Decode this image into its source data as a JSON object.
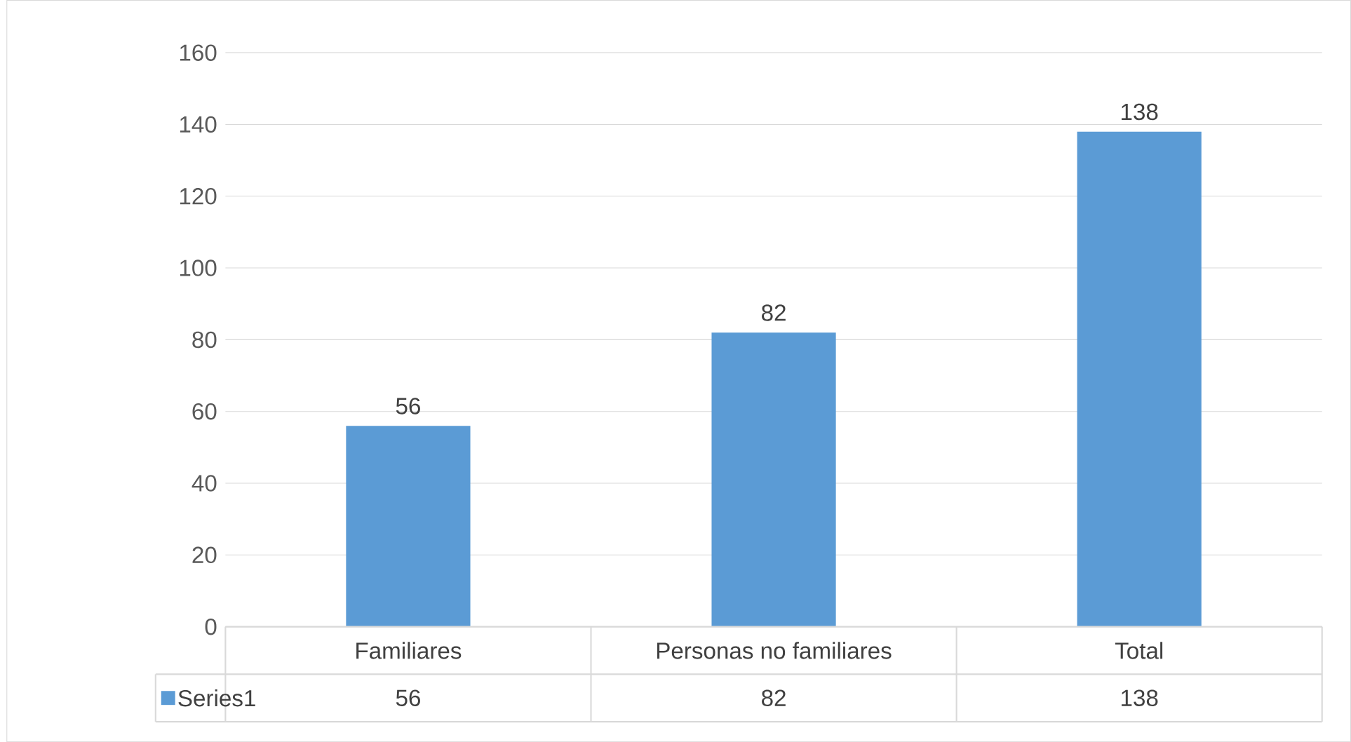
{
  "chart_data": {
    "type": "bar",
    "categories": [
      "Familiares",
      "Personas no familiares",
      "Total"
    ],
    "series": [
      {
        "name": "Series1",
        "color": "#5b9bd5",
        "values": [
          56,
          82,
          138
        ],
        "value_labels": [
          "56",
          "82",
          "138"
        ]
      }
    ],
    "ylim": [
      0,
      160
    ],
    "yticks": [
      0,
      20,
      40,
      60,
      80,
      100,
      120,
      140,
      160
    ],
    "grid": "y",
    "legend": "bottom"
  }
}
